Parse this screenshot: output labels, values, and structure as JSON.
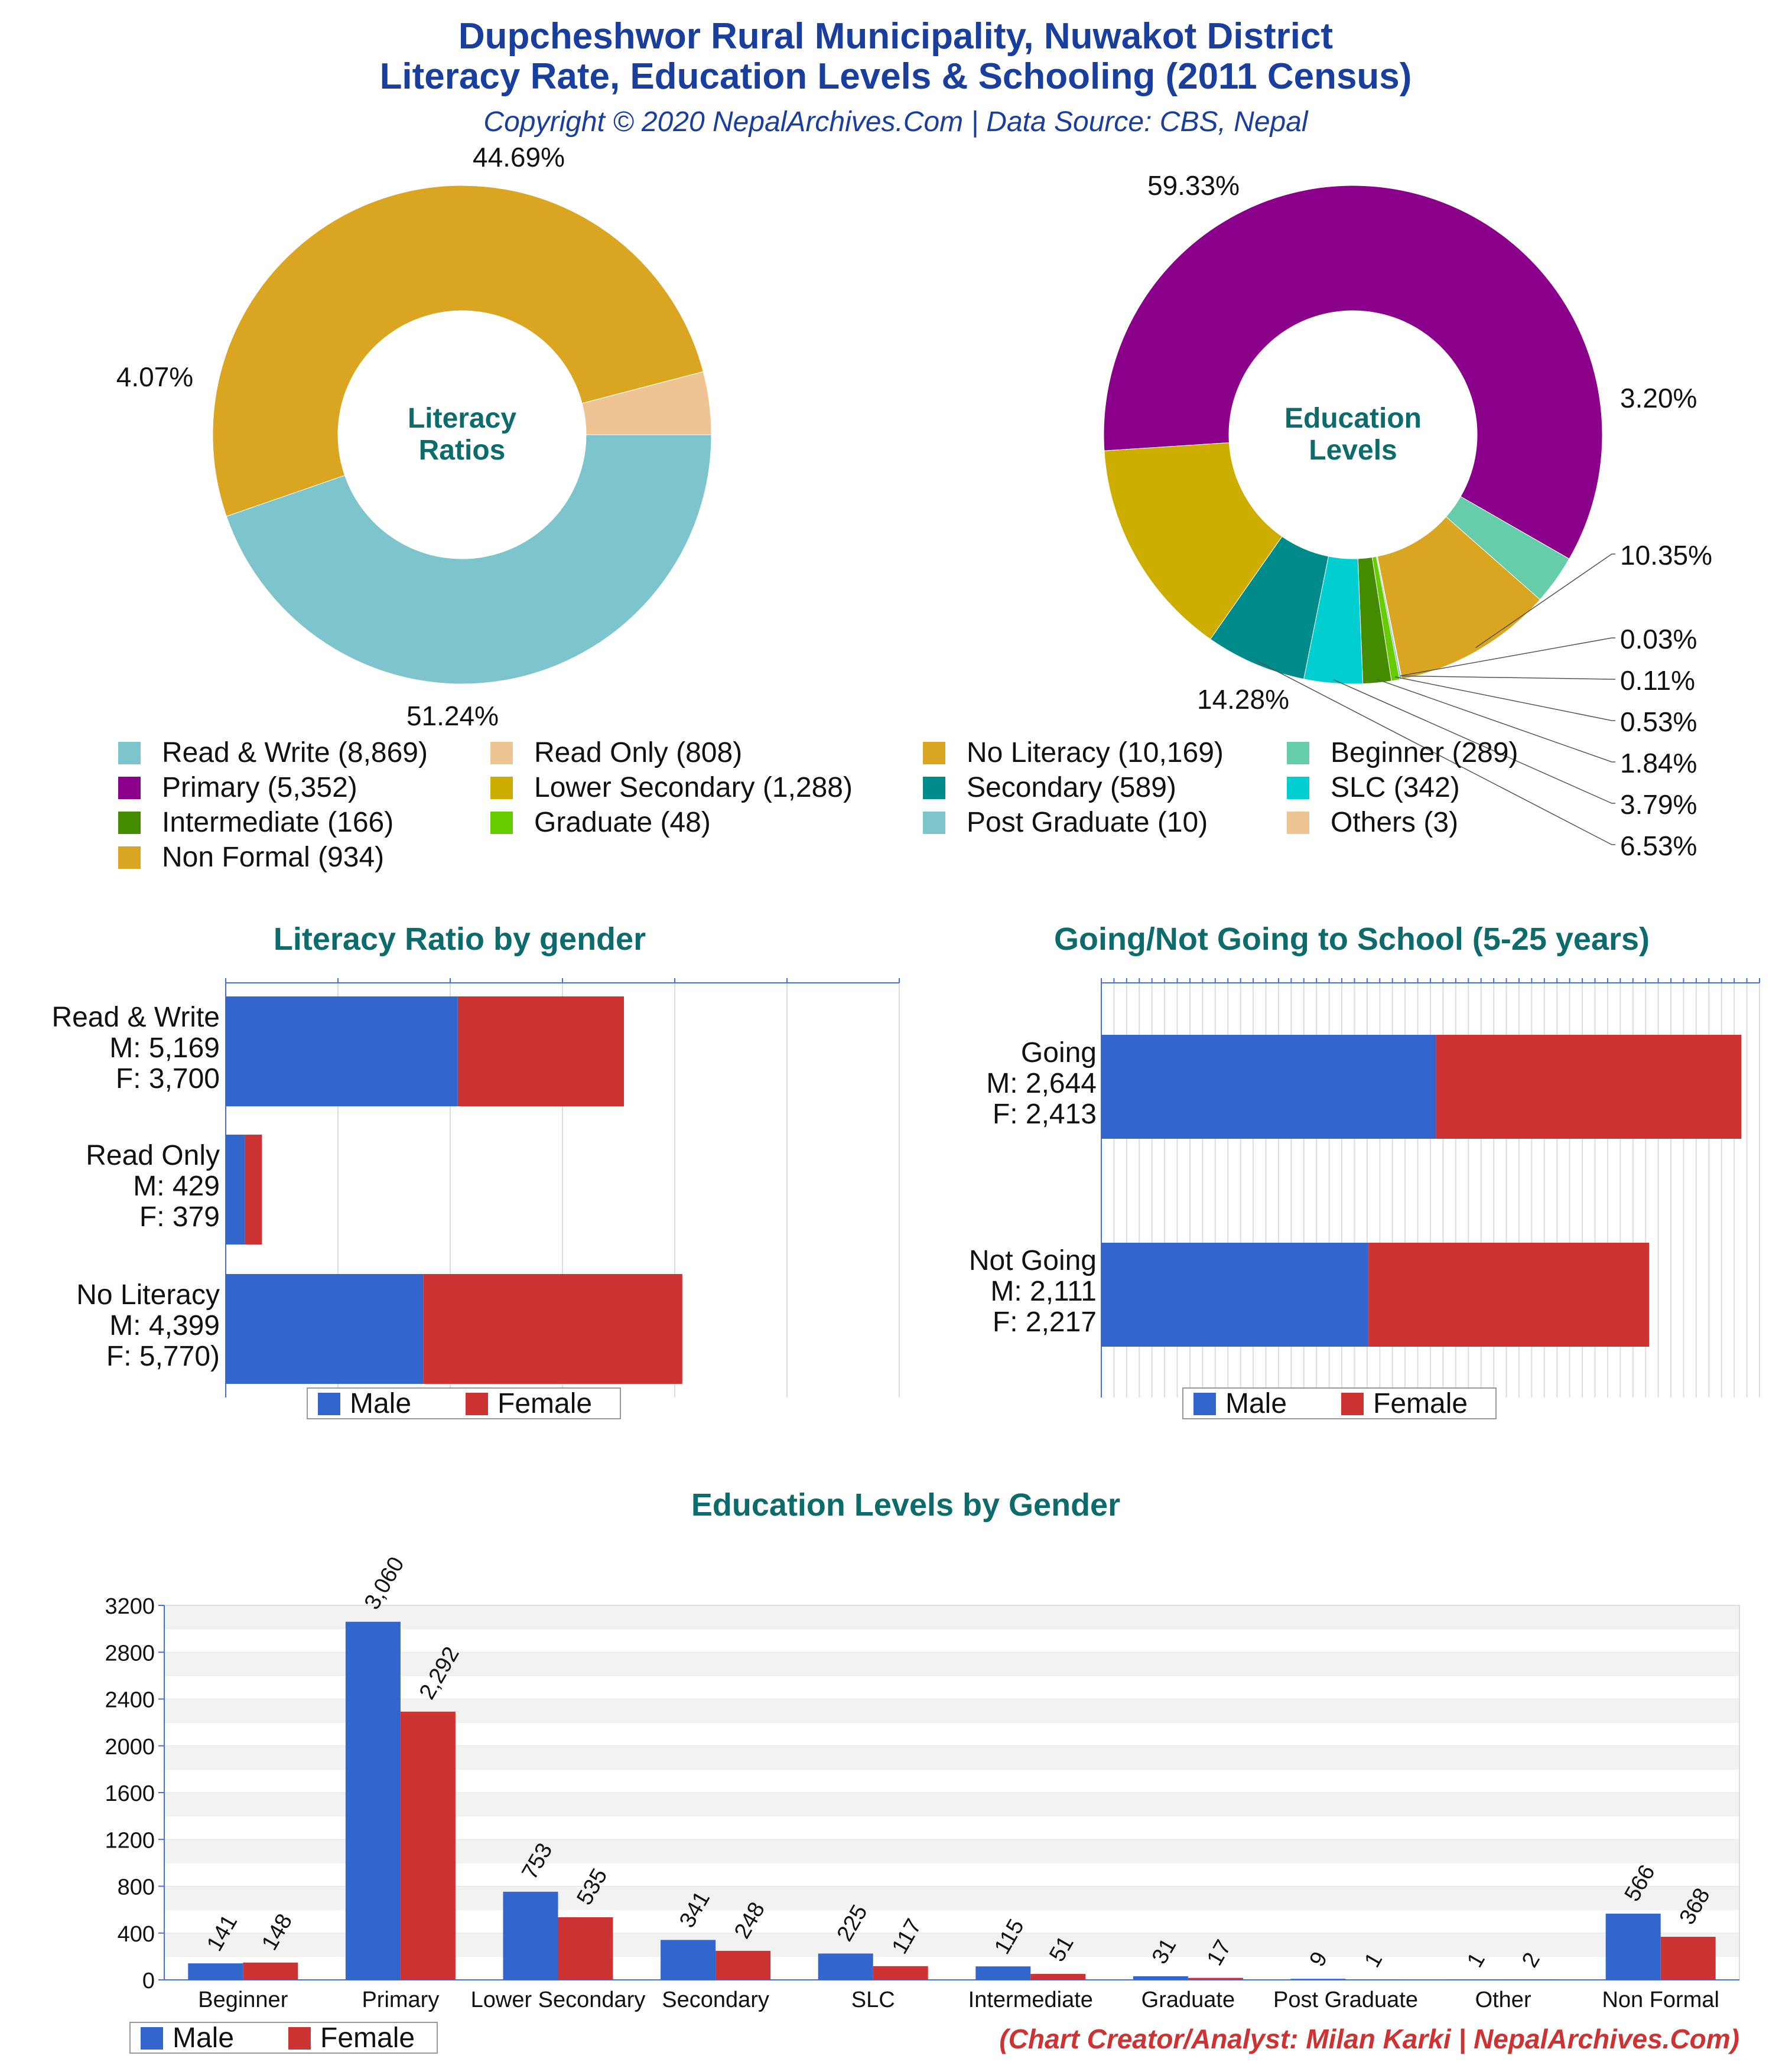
{
  "header": {
    "title_line1": "Dupcheshwor Rural Municipality, Nuwakot District",
    "title_line2": "Literacy Rate, Education Levels & Schooling (2011 Census)",
    "subtitle": "Copyright © 2020 NepalArchives.Com | Data Source: CBS, Nepal",
    "title_color": "#1a3e9c",
    "section_title_color": "#0e6b6b"
  },
  "footer": {
    "credit": "(Chart Creator/Analyst: Milan Karki | NepalArchives.Com)",
    "credit_color": "#cc3333"
  },
  "colors": {
    "male": "#3366cc",
    "female": "#cc3333"
  },
  "chart_data": [
    {
      "type": "pie",
      "center_label": [
        "Literacy",
        "Ratios"
      ],
      "slices": [
        {
          "name": "Read & Write",
          "value": 8869,
          "pct_label": "44.69%",
          "color": "#7ec4cc"
        },
        {
          "name": "No Literacy",
          "value": 10169,
          "pct_label": "51.24%",
          "color": "#daa520"
        },
        {
          "name": "Read Only",
          "value": 808,
          "pct_label": "4.07%",
          "color": "#eec592"
        }
      ]
    },
    {
      "type": "pie",
      "center_label": [
        "Education",
        "Levels"
      ],
      "slices": [
        {
          "name": "Primary",
          "value": 5352,
          "pct_label": "59.33%",
          "color": "#8b008b"
        },
        {
          "name": "Beginner",
          "value": 289,
          "pct_label": "3.20%",
          "color": "#66cdaa"
        },
        {
          "name": "Non Formal",
          "value": 934,
          "pct_label": "10.35%",
          "color": "#daa520"
        },
        {
          "name": "Others",
          "value": 3,
          "pct_label": "0.03%",
          "color": "#eec592"
        },
        {
          "name": "Post Graduate",
          "value": 10,
          "pct_label": "0.11%",
          "color": "#7ec4cc"
        },
        {
          "name": "Graduate",
          "value": 48,
          "pct_label": "0.53%",
          "color": "#66cc00"
        },
        {
          "name": "Intermediate",
          "value": 166,
          "pct_label": "1.84%",
          "color": "#458b00"
        },
        {
          "name": "SLC",
          "value": 342,
          "pct_label": "3.79%",
          "color": "#00ced1"
        },
        {
          "name": "Secondary",
          "value": 589,
          "pct_label": "6.53%",
          "color": "#008b8b"
        },
        {
          "name": "Lower Secondary",
          "value": 1288,
          "pct_label": "14.28%",
          "color": "#ccad00"
        }
      ]
    },
    {
      "type": "bar",
      "orientation": "horizontal-stacked",
      "title": "Literacy Ratio by gender",
      "categories": [
        "Read & Write",
        "Read Only",
        "No Literacy"
      ],
      "cat_labels": [
        [
          "Read & Write",
          "M: 5,169",
          "F: 3,700"
        ],
        [
          "Read Only",
          "M: 429",
          "F: 379"
        ],
        [
          "No Literacy",
          "M: 4,399",
          "F: 5,770)"
        ]
      ],
      "series": [
        {
          "name": "Male",
          "values": [
            5169,
            429,
            4399
          ]
        },
        {
          "name": "Female",
          "values": [
            3700,
            379,
            5770
          ]
        }
      ],
      "xlim": [
        0,
        15000
      ]
    },
    {
      "type": "bar",
      "orientation": "horizontal-stacked",
      "title": "Going/Not Going to School (5-25 years)",
      "categories": [
        "Going",
        "Not Going"
      ],
      "cat_labels": [
        [
          "Going",
          "M: 2,644",
          "F: 2,413"
        ],
        [
          "Not Going",
          "M: 2,111",
          "F: 2,217"
        ]
      ],
      "series": [
        {
          "name": "Male",
          "values": [
            2644,
            2111
          ]
        },
        {
          "name": "Female",
          "values": [
            2413,
            2217
          ]
        }
      ],
      "xlim": [
        0,
        5200
      ]
    },
    {
      "type": "bar",
      "title": "Education Levels by Gender",
      "categories": [
        "Beginner",
        "Primary",
        "Lower Secondary",
        "Secondary",
        "SLC",
        "Intermediate",
        "Graduate",
        "Post Graduate",
        "Other",
        "Non Formal"
      ],
      "series": [
        {
          "name": "Male",
          "values": [
            141,
            3060,
            753,
            341,
            225,
            115,
            31,
            9,
            1,
            566
          ],
          "labels": [
            "141",
            "3,060",
            "753",
            "341",
            "225",
            "115",
            "31",
            "9",
            "1",
            "566"
          ]
        },
        {
          "name": "Female",
          "values": [
            148,
            2292,
            535,
            248,
            117,
            51,
            17,
            1,
            2,
            368
          ],
          "labels": [
            "148",
            "2,292",
            "535",
            "248",
            "117",
            "51",
            "17",
            "1",
            "2",
            "368"
          ]
        }
      ],
      "yticks": [
        "0",
        "400",
        "800",
        "1200",
        "1600",
        "2000",
        "2400",
        "2800",
        "3200"
      ],
      "ylim": [
        0,
        3200
      ]
    }
  ],
  "legends": {
    "pies": [
      [
        {
          "label": "Read & Write (8,869)",
          "color": "#7ec4cc"
        },
        {
          "label": "Primary (5,352)",
          "color": "#8b008b"
        },
        {
          "label": "Intermediate (166)",
          "color": "#458b00"
        },
        {
          "label": "Non Formal (934)",
          "color": "#daa520"
        }
      ],
      [
        {
          "label": "Read Only (808)",
          "color": "#eec592"
        },
        {
          "label": "Lower Secondary (1,288)",
          "color": "#ccad00"
        },
        {
          "label": "Graduate (48)",
          "color": "#66cc00"
        }
      ],
      [
        {
          "label": "No Literacy (10,169)",
          "color": "#daa520"
        },
        {
          "label": "Secondary (589)",
          "color": "#008b8b"
        },
        {
          "label": "Post Graduate (10)",
          "color": "#7ec4cc"
        }
      ],
      [
        {
          "label": "Beginner (289)",
          "color": "#66cdaa"
        },
        {
          "label": "SLC (342)",
          "color": "#00ced1"
        },
        {
          "label": "Others (3)",
          "color": "#eec592"
        }
      ]
    ],
    "gender": {
      "male": "Male",
      "female": "Female"
    }
  }
}
